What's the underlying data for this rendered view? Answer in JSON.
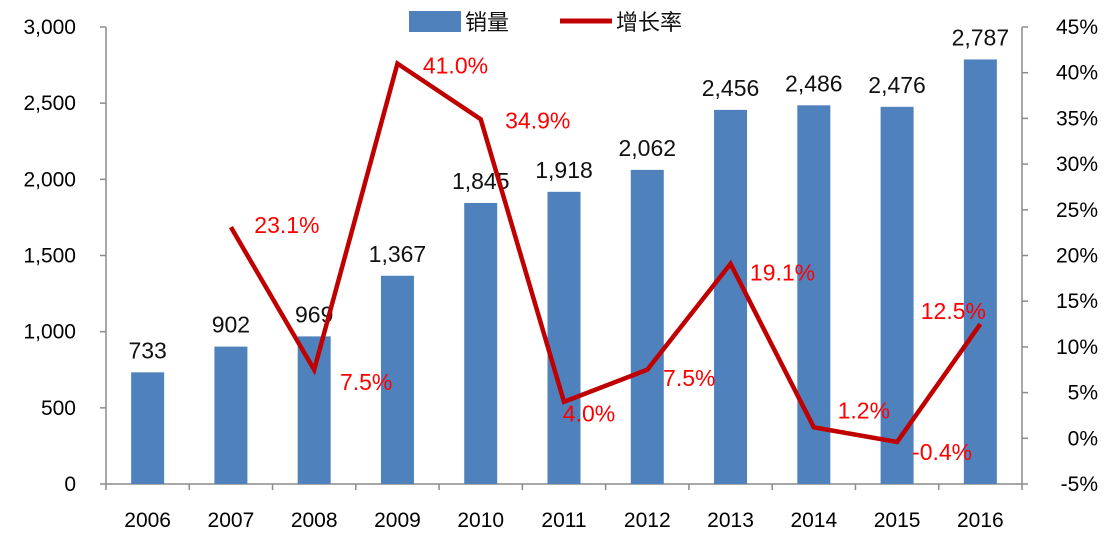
{
  "chart_data": {
    "type": "bar+line",
    "categories": [
      "2006",
      "2007",
      "2008",
      "2009",
      "2010",
      "2011",
      "2012",
      "2013",
      "2014",
      "2015",
      "2016"
    ],
    "series": [
      {
        "name": "销量",
        "type": "bar",
        "axis": "left",
        "color": "#4F81BD",
        "values": [
          733,
          902,
          969,
          1367,
          1845,
          1918,
          2062,
          2456,
          2486,
          2476,
          2787
        ],
        "labels": [
          "733",
          "902",
          "969",
          "1,367",
          "1,845",
          "1,918",
          "2,062",
          "2,456",
          "2,486",
          "2,476",
          "2,787"
        ]
      },
      {
        "name": "增长率",
        "type": "line",
        "axis": "right",
        "color": "#C00000",
        "label_color": "#FF0000",
        "values": [
          null,
          23.1,
          7.5,
          41.0,
          34.9,
          4.0,
          7.5,
          19.1,
          1.2,
          -0.4,
          12.5
        ],
        "labels": [
          null,
          "23.1%",
          "7.5%",
          "41.0%",
          "34.9%",
          "4.0%",
          "7.5%",
          "19.1%",
          "1.2%",
          "-0.4%",
          "12.5%"
        ]
      }
    ],
    "y_left": {
      "range": [
        0,
        3000
      ],
      "ticks": [
        0,
        500,
        1000,
        1500,
        2000,
        2500,
        3000
      ],
      "tick_labels": [
        "0",
        "500",
        "1,000",
        "1,500",
        "2,000",
        "2,500",
        "3,000"
      ]
    },
    "y_right": {
      "range": [
        -5,
        45
      ],
      "ticks": [
        -5,
        0,
        5,
        10,
        15,
        20,
        25,
        30,
        35,
        40,
        45
      ],
      "tick_labels": [
        "-5%",
        "0%",
        "5%",
        "10%",
        "15%",
        "20%",
        "25%",
        "30%",
        "35%",
        "40%",
        "45%"
      ]
    },
    "grid": false,
    "legend": {
      "placement": "top-center",
      "items": [
        "销量",
        "增长率"
      ]
    }
  }
}
